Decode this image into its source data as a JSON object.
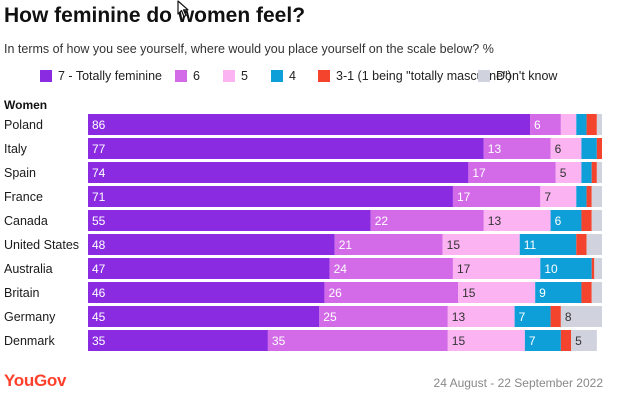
{
  "title": "How feminine do women feel?",
  "subtitle": "In terms of how you see yourself, where would you place yourself on the scale below? %",
  "group_label": "Women",
  "footer": {
    "brand": "YouGov",
    "date_range": "24 August - 22 September 2022"
  },
  "chart_data": {
    "type": "bar",
    "orientation": "horizontal",
    "stacked": true,
    "xlim": [
      0,
      100
    ],
    "categories": [
      "Poland",
      "Italy",
      "Spain",
      "France",
      "Canada",
      "United States",
      "Australia",
      "Britain",
      "Germany",
      "Denmark"
    ],
    "series": [
      {
        "name": "7 - Totally feminine",
        "color": "#8a2be2",
        "values": [
          86,
          77,
          74,
          71,
          55,
          48,
          47,
          46,
          45,
          35
        ]
      },
      {
        "name": "6",
        "color": "#d36ae8",
        "values": [
          6,
          13,
          17,
          17,
          22,
          21,
          24,
          26,
          25,
          35
        ]
      },
      {
        "name": "5",
        "color": "#fbb3f2",
        "values": [
          3,
          6,
          5,
          7,
          13,
          15,
          17,
          15,
          13,
          15
        ]
      },
      {
        "name": "4",
        "color": "#0e9fd8",
        "values": [
          2,
          3,
          2,
          2,
          6,
          11,
          10,
          9,
          7,
          7
        ]
      },
      {
        "name": "3-1 (1 being \"totally masculine\")",
        "color": "#f4442e",
        "values": [
          2,
          1,
          1,
          1,
          2,
          2,
          0.5,
          2,
          2,
          2
        ]
      },
      {
        "name": "Don't know",
        "color": "#d0d3dd",
        "values": [
          1,
          0,
          1,
          2,
          2,
          3,
          1.5,
          2,
          8,
          5
        ]
      }
    ],
    "labels": [
      [
        "86",
        "6",
        "",
        "",
        "",
        ""
      ],
      [
        "77",
        "13",
        "6",
        "",
        "",
        ""
      ],
      [
        "74",
        "17",
        "5",
        "",
        "",
        ""
      ],
      [
        "71",
        "17",
        "7",
        "",
        "",
        ""
      ],
      [
        "55",
        "22",
        "13",
        "6",
        "",
        ""
      ],
      [
        "48",
        "21",
        "15",
        "11",
        "",
        ""
      ],
      [
        "47",
        "24",
        "17",
        "10",
        "",
        ""
      ],
      [
        "46",
        "26",
        "15",
        "9",
        "",
        ""
      ],
      [
        "45",
        "25",
        "13",
        "7",
        "",
        "8"
      ],
      [
        "35",
        "35",
        "15",
        "7",
        "",
        "5"
      ]
    ],
    "legend_position": "top",
    "grid": false
  }
}
